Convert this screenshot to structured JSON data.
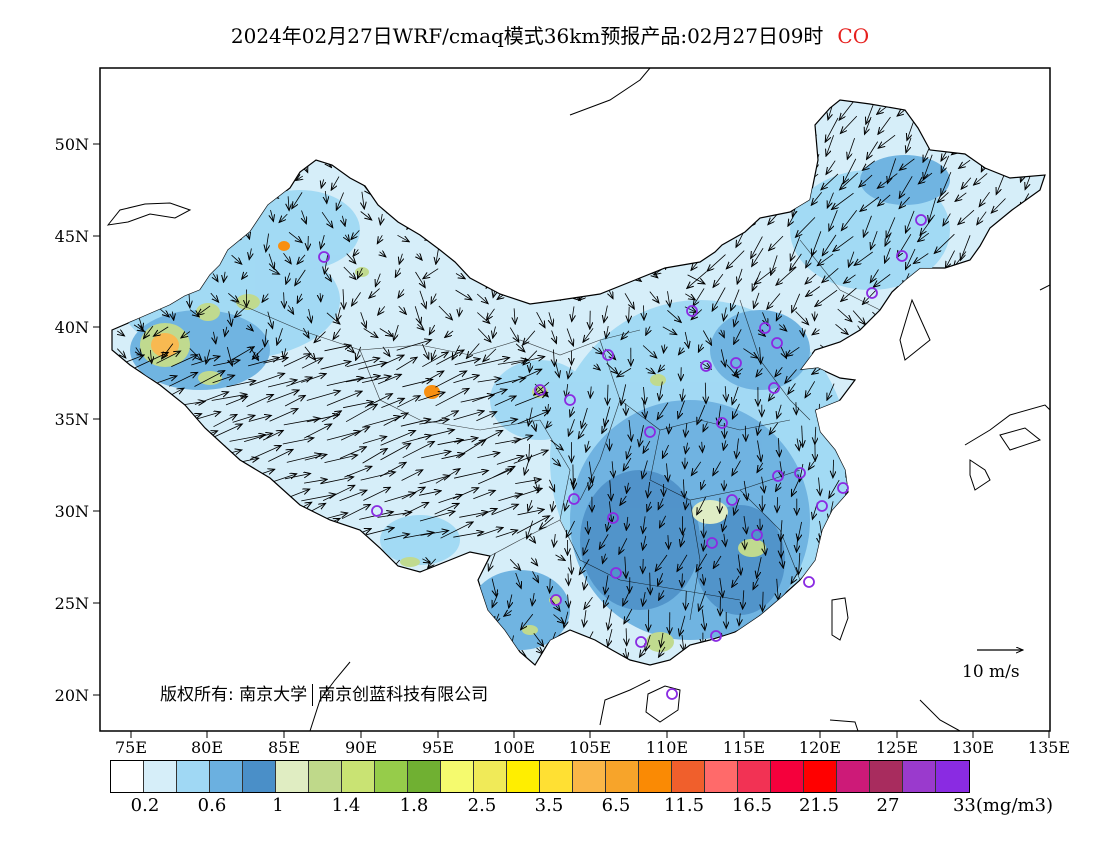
{
  "title": {
    "text": "2024年02月27日WRF/cmaq模式36km预报产品:02月27日09时",
    "pollutant": "CO"
  },
  "axes": {
    "lat_ticks": [
      "50N",
      "45N",
      "40N",
      "35N",
      "30N",
      "25N",
      "20N"
    ],
    "lon_ticks": [
      "75E",
      "80E",
      "85E",
      "90E",
      "95E",
      "100E",
      "105E",
      "110E",
      "115E",
      "120E",
      "125E",
      "130E",
      "135E"
    ]
  },
  "credit": {
    "left": "版权所有: 南京大学",
    "right": "南京创蓝科技有限公司"
  },
  "wind_reference": {
    "label": "10 m/s"
  },
  "legend": {
    "colors": [
      "#ffffff",
      "#d6eef9",
      "#a0d8f4",
      "#6bb0e0",
      "#4a8fc8",
      "#e0edc2",
      "#bfd98a",
      "#c9e373",
      "#96cc4a",
      "#70b032",
      "#f5fa6e",
      "#f0ea58",
      "#ffee00",
      "#ffe033",
      "#fab648",
      "#f7a42a",
      "#fa8a04",
      "#f05f2c",
      "#ff6a6a",
      "#f23254",
      "#f5003c",
      "#ff0000",
      "#cd1a78",
      "#a82c5e",
      "#9a3acd",
      "#8a2be2"
    ],
    "labels": [
      "0.2",
      "0.6",
      "1",
      "1.4",
      "1.8",
      "2.5",
      "3.5",
      "6.5",
      "11.5",
      "16.5",
      "21.5",
      "27",
      "33(mg/m3)"
    ]
  }
}
